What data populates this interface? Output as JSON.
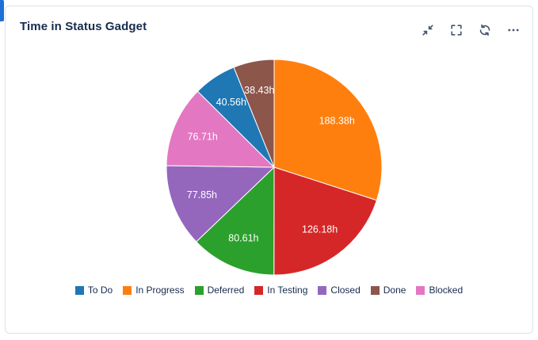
{
  "accent_bar": {
    "color": "#1f6fd4"
  },
  "header": {
    "title": "Time in Status Gadget",
    "actions": [
      {
        "name": "collapse",
        "icon": "collapse-arrows-icon"
      },
      {
        "name": "fullscreen",
        "icon": "fullscreen-icon"
      },
      {
        "name": "refresh",
        "icon": "refresh-icon"
      },
      {
        "name": "more",
        "icon": "ellipsis-icon"
      }
    ]
  },
  "colors": {
    "title_text": "#172b4d",
    "icon": "#44546f",
    "card_border": "#dfe1e6",
    "slice_label_text": "#ffffff"
  },
  "chart_data": {
    "type": "pie",
    "title": "Time in Status Gadget",
    "legend_position": "bottom",
    "direction": "clockwise",
    "start_angle_deg": 0,
    "series": [
      {
        "name": "To Do",
        "value": 40.56,
        "label": "40.56h",
        "color": "#1f77b4"
      },
      {
        "name": "In Progress",
        "value": 188.38,
        "label": "188.38h",
        "color": "#ff7f0e"
      },
      {
        "name": "Deferred",
        "value": 80.61,
        "label": "80.61h",
        "color": "#2ca02c"
      },
      {
        "name": "In Testing",
        "value": 126.18,
        "label": "126.18h",
        "color": "#d62728"
      },
      {
        "name": "Closed",
        "value": 77.85,
        "label": "77.85h",
        "color": "#9467bd"
      },
      {
        "name": "Done",
        "value": 38.43,
        "label": "38.43h",
        "color": "#8c564b"
      },
      {
        "name": "Blocked",
        "value": 76.71,
        "label": "76.71h",
        "color": "#e377c2"
      }
    ],
    "draw_order": [
      "In Progress",
      "In Testing",
      "Deferred",
      "Closed",
      "Blocked",
      "To Do",
      "Done"
    ]
  }
}
